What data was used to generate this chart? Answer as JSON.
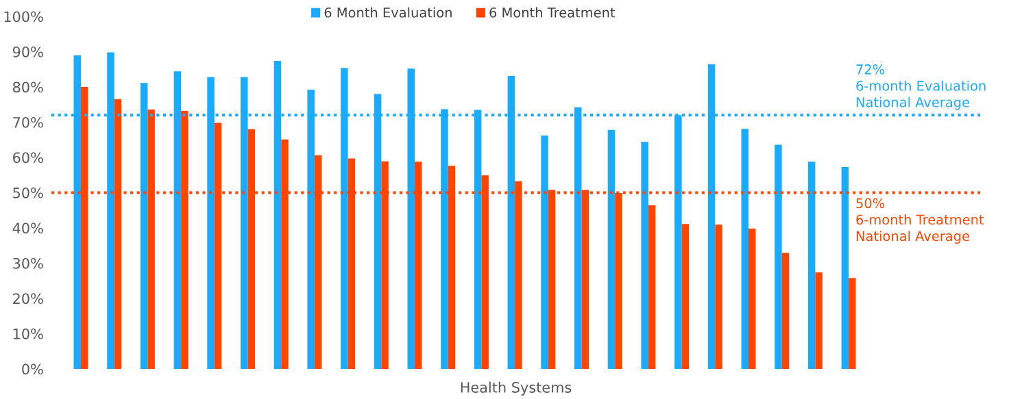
{
  "chart_data": {
    "type": "bar",
    "xlabel": "Health Systems",
    "categories": [
      null,
      null,
      null,
      null,
      null,
      null,
      null,
      null,
      null,
      null,
      null,
      null,
      null,
      null,
      null,
      null,
      null,
      null,
      null,
      null,
      null,
      null,
      null,
      null
    ],
    "series": [
      {
        "name": "6 Month Evaluation",
        "color": "#1aabff",
        "values": [
          89.0,
          89.8,
          81.1,
          84.4,
          82.8,
          82.8,
          87.4,
          79.2,
          85.4,
          78.0,
          85.2,
          73.7,
          73.5,
          83.1,
          66.2,
          74.2,
          67.8,
          64.4,
          72.0,
          86.4,
          68.1,
          63.6,
          58.8,
          57.3
        ]
      },
      {
        "name": "6 Month Treatment",
        "color": "#ff4500",
        "values": [
          80.0,
          76.5,
          73.6,
          73.2,
          69.8,
          68.0,
          65.1,
          60.6,
          59.7,
          58.9,
          58.8,
          57.6,
          54.9,
          53.2,
          50.8,
          50.8,
          49.9,
          46.4,
          41.1,
          40.9,
          39.8,
          32.9,
          27.4,
          25.8
        ]
      }
    ],
    "ylim": [
      0,
      100
    ],
    "yticks": [
      {
        "value": 0,
        "label": "0%"
      },
      {
        "value": 10,
        "label": "10%"
      },
      {
        "value": 20,
        "label": "20%"
      },
      {
        "value": 30,
        "label": "30%"
      },
      {
        "value": 40,
        "label": "40%"
      },
      {
        "value": 50,
        "label": "50%"
      },
      {
        "value": 60,
        "label": "60%"
      },
      {
        "value": 70,
        "label": "70%"
      },
      {
        "value": 80,
        "label": "80%"
      },
      {
        "value": 90,
        "label": "90%"
      },
      {
        "value": 100,
        "label": "100%"
      }
    ],
    "ref_lines": [
      {
        "axis": "y",
        "value": 72,
        "label": "72%\n6-month Evaluation\nNational Average",
        "color": "#1aabff",
        "line_style": "dotted"
      },
      {
        "axis": "y",
        "value": 50,
        "label": "50%\n6-month Treatment\nNational Average",
        "color": "#ff4500",
        "line_style": "dotted"
      }
    ],
    "grid": false,
    "legend": "top right"
  }
}
